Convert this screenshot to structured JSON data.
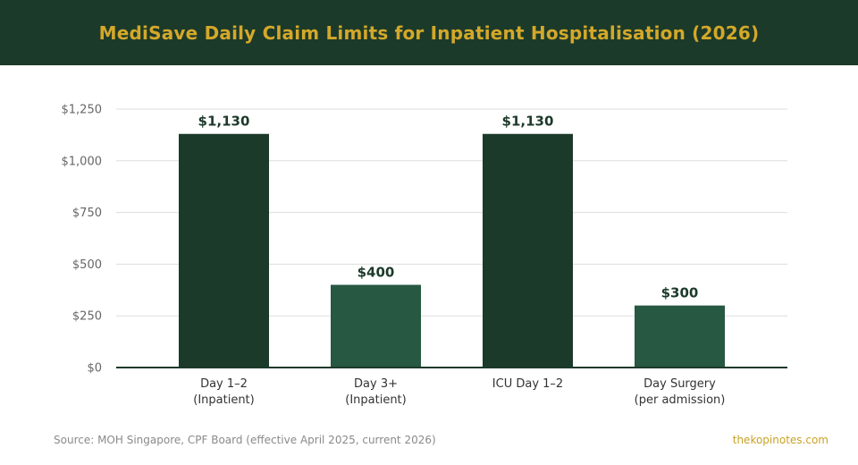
{
  "header": {
    "title": "MediSave Daily Claim Limits for Inpatient Hospitalisation (2026)"
  },
  "colors": {
    "header_bg": "#1c3a2a",
    "title": "#d4a829",
    "bar_dark": "#1c3a2a",
    "bar_medium": "#275842",
    "gridline": "#dddddd",
    "axis_text": "#666666",
    "brand": "#c9a227"
  },
  "chart_data": {
    "type": "bar",
    "title": "MediSave Daily Claim Limits for Inpatient Hospitalisation (2026)",
    "xlabel": "",
    "ylabel": "",
    "categories": [
      [
        "Day 1–2",
        "(Inpatient)"
      ],
      [
        "Day 3+",
        "(Inpatient)"
      ],
      [
        "ICU Day 1–2"
      ],
      [
        "Day Surgery",
        "(per admission)"
      ]
    ],
    "values": [
      1130,
      400,
      1130,
      300
    ],
    "value_labels": [
      "$1,130",
      "$400",
      "$1,130",
      "$300"
    ],
    "bar_colors": [
      "#1c3a2a",
      "#275842",
      "#1c3a2a",
      "#275842"
    ],
    "ylim": [
      0,
      1250
    ],
    "yticks": [
      0,
      250,
      500,
      750,
      1000,
      1250
    ],
    "ytick_labels": [
      "$0",
      "$250",
      "$500",
      "$750",
      "$1,000",
      "$1,250"
    ],
    "grid": true,
    "legend": "none"
  },
  "footer": {
    "source": "Source: MOH Singapore, CPF Board (effective April 2025, current 2026)",
    "brand": "thekopinotes.com"
  }
}
